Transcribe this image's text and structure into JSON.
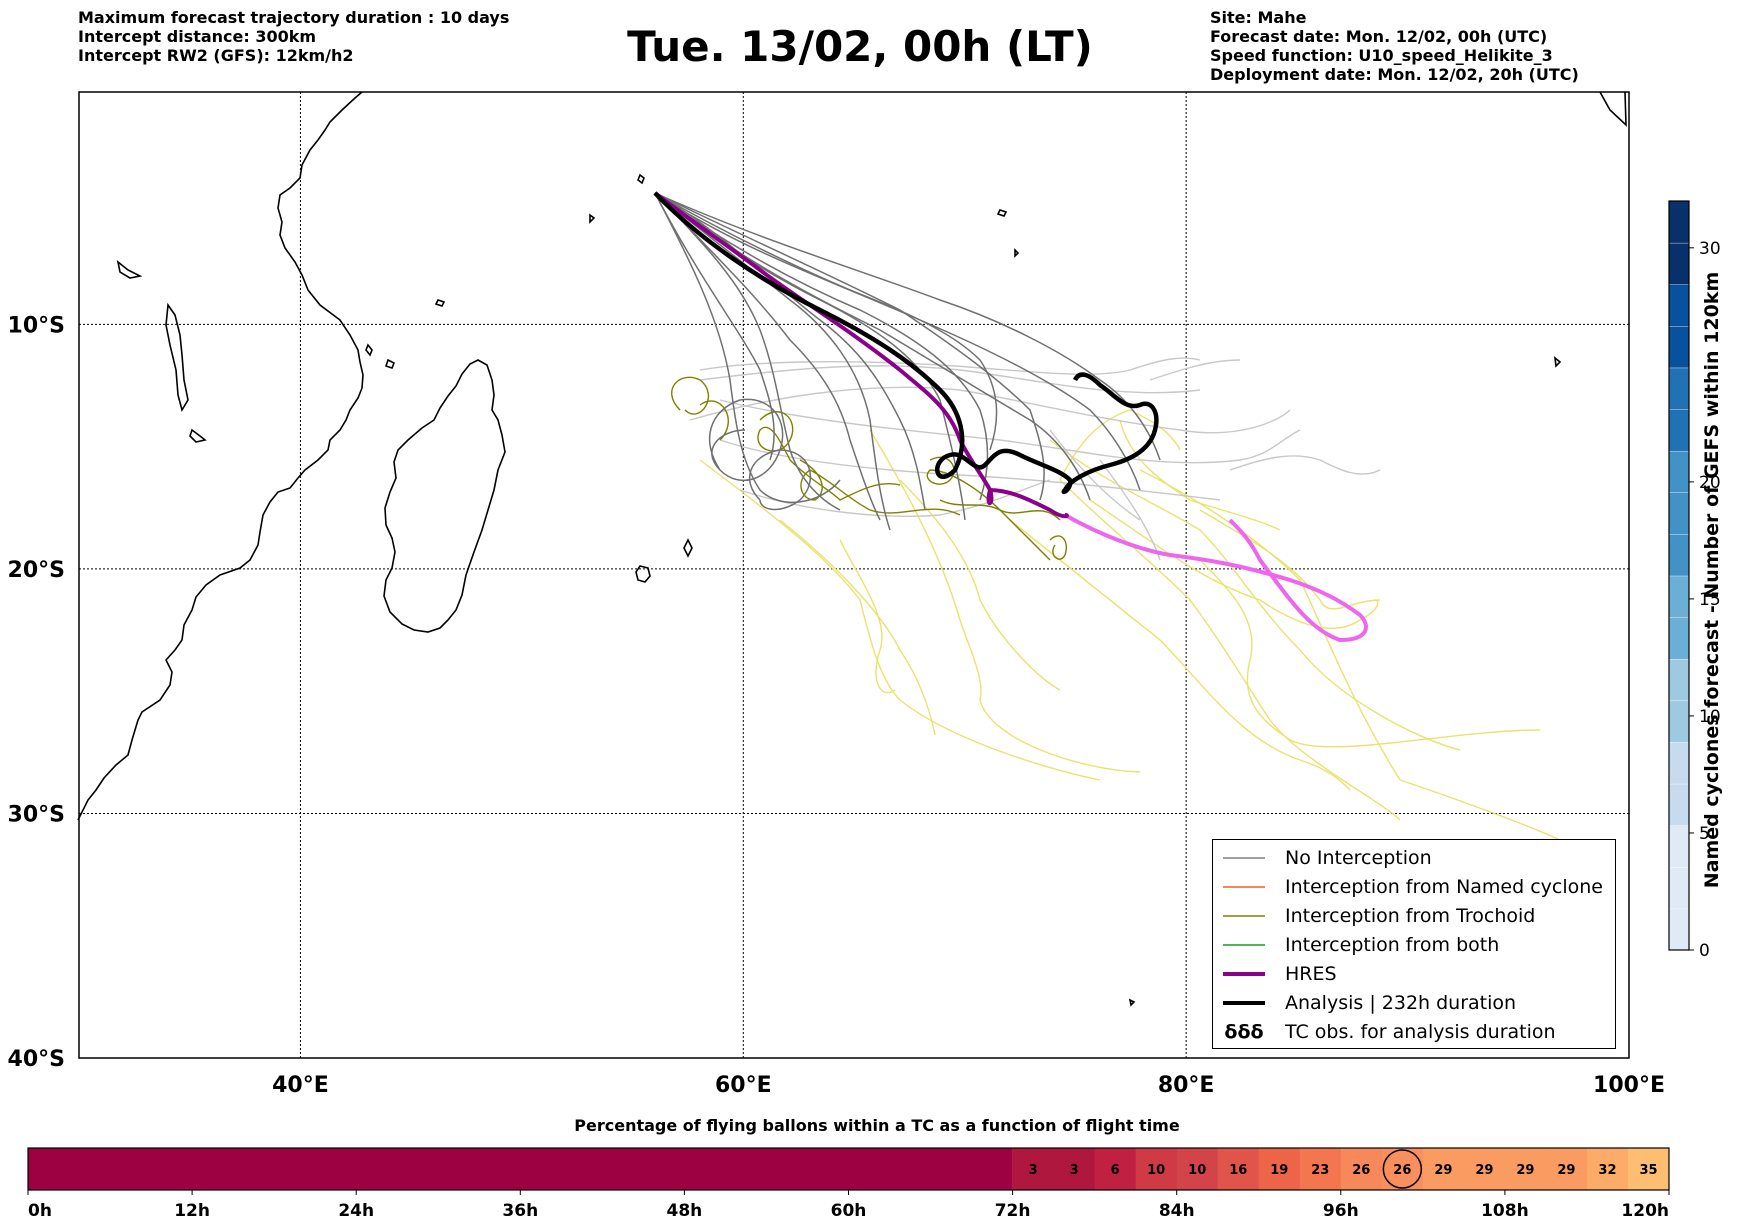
{
  "header": {
    "left_lines": [
      "Maximum forecast trajectory duration : 10 days",
      "Intercept distance: 300km",
      "Intercept RW2 (GFS):  12km/h2"
    ],
    "title": "Tue. 13/02, 00h (LT)",
    "right_lines": [
      "Site: Mahe",
      "Forecast date: Mon. 12/02, 00h (UTC)",
      "Speed function: U10_speed_Helikite_3",
      "Deployment date: Mon. 12/02, 20h (UTC)"
    ]
  },
  "map": {
    "lon_range": [
      30,
      100
    ],
    "lat_range": [
      -40,
      -0.5
    ],
    "lon_ticks": [
      {
        "value": 40,
        "label": "40°E"
      },
      {
        "value": 60,
        "label": "60°E"
      },
      {
        "value": 80,
        "label": "80°E"
      },
      {
        "value": 100,
        "label": "100°E"
      }
    ],
    "lat_ticks": [
      {
        "value": -10,
        "label": "10°S"
      },
      {
        "value": -20,
        "label": "20°S"
      },
      {
        "value": -30,
        "label": "30°S"
      },
      {
        "value": -40,
        "label": "40°S"
      }
    ],
    "gridlines": true,
    "launch_site": {
      "lon": 55.5,
      "lat": -4.6
    }
  },
  "legend": {
    "placement": "bottom-right",
    "items": [
      {
        "label": "No Interception",
        "color": "#808080",
        "style": "thin"
      },
      {
        "label": "Interception from Named cyclone",
        "color": "#e8601c",
        "style": "thin"
      },
      {
        "label": "Interception from Trochoid",
        "color": "#808000",
        "style": "thin"
      },
      {
        "label": "Interception from both",
        "color": "#1a9a1a",
        "style": "thin"
      },
      {
        "label": "HRES",
        "color": "#8b008b",
        "style": "thick"
      },
      {
        "label": "Analysis | 232h duration",
        "color": "#000000",
        "style": "thick"
      },
      {
        "label": "TC obs. for analysis duration",
        "color": "#000000",
        "style": "symbol",
        "symbol": "δδδ"
      }
    ]
  },
  "colorbar": {
    "label": "Named cyclones forecast - Number of GEFS within 120km",
    "range": [
      0,
      32
    ],
    "ticks": [
      0,
      5,
      10,
      15,
      20,
      30
    ],
    "colors": [
      "#deebf7",
      "#c6dbef",
      "#9ecae1",
      "#6baed6",
      "#4292c6",
      "#2171b5",
      "#08519c",
      "#08306b"
    ]
  },
  "percentage_bar": {
    "title": "Percentage of flying ballons within a TC as a function of flight time",
    "hours_range": [
      0,
      120
    ],
    "hour_ticks": [
      {
        "value": 0,
        "label": "0h"
      },
      {
        "value": 12,
        "label": "12h"
      },
      {
        "value": 24,
        "label": "24h"
      },
      {
        "value": 36,
        "label": "36h"
      },
      {
        "value": 48,
        "label": "48h"
      },
      {
        "value": 60,
        "label": "60h"
      },
      {
        "value": 72,
        "label": "72h"
      },
      {
        "value": 84,
        "label": "84h"
      },
      {
        "value": 96,
        "label": "96h"
      },
      {
        "value": 108,
        "label": "108h"
      },
      {
        "value": 120,
        "label": "120h"
      }
    ],
    "base_color": "#9e0142",
    "cells": [
      {
        "hour": 72,
        "value": "3",
        "color": "#b0173f"
      },
      {
        "hour": 75,
        "value": "3",
        "color": "#b0173f"
      },
      {
        "hour": 78,
        "value": "6",
        "color": "#c02042"
      },
      {
        "hour": 81,
        "value": "10",
        "color": "#cf3a45"
      },
      {
        "hour": 84,
        "value": "10",
        "color": "#d3434a"
      },
      {
        "hour": 87,
        "value": "16",
        "color": "#e0544a"
      },
      {
        "hour": 90,
        "value": "19",
        "color": "#ec6549"
      },
      {
        "hour": 93,
        "value": "23",
        "color": "#f4764f"
      },
      {
        "hour": 96,
        "value": "26",
        "color": "#f7885a"
      },
      {
        "hour": 99,
        "value": "26",
        "color": "#f98e5e"
      },
      {
        "hour": 102,
        "value": "29",
        "color": "#fa9b62"
      },
      {
        "hour": 105,
        "value": "29",
        "color": "#fa9b62"
      },
      {
        "hour": 108,
        "value": "29",
        "color": "#fa9b62"
      },
      {
        "hour": 111,
        "value": "29",
        "color": "#fa9b62"
      },
      {
        "hour": 114,
        "value": "32",
        "color": "#fcac68"
      },
      {
        "hour": 117,
        "value": "35",
        "color": "#fdbe72"
      }
    ],
    "current_cell_hour": 99
  }
}
